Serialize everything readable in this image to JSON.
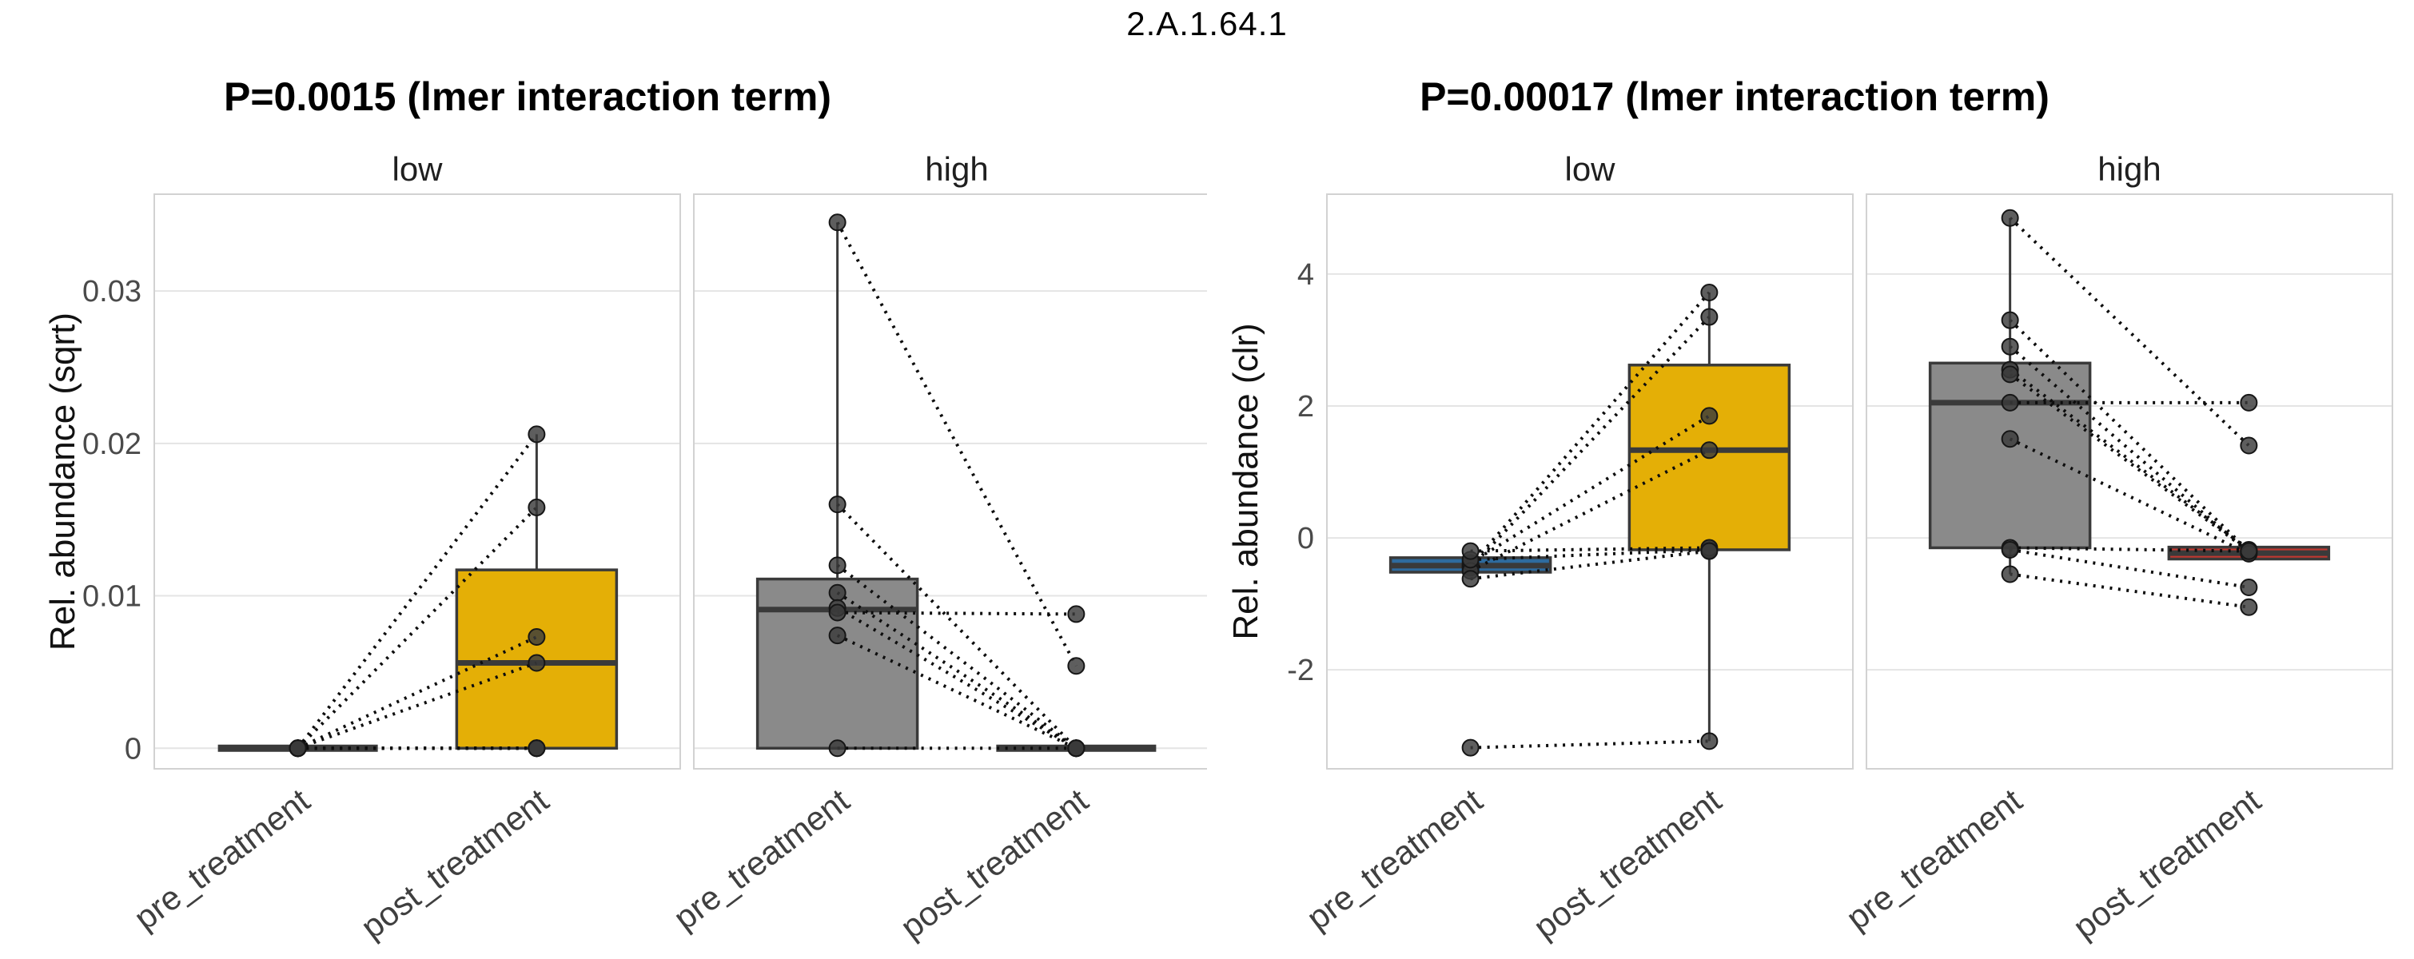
{
  "main_title": "2.A.1.64.1",
  "chart_data": [
    {
      "type": "paired-boxplot",
      "title": "P=0.0015 (lmer interaction term)",
      "ylabel": "Rel. abundance (sqrt)",
      "categories": [
        "pre_treatment",
        "post_treatment"
      ],
      "yticks": [
        {
          "v": 0,
          "label": "0"
        },
        {
          "v": 0.01,
          "label": "0.01"
        },
        {
          "v": 0.02,
          "label": "0.02"
        },
        {
          "v": 0.03,
          "label": "0.03"
        }
      ],
      "ylim": [
        -0.00135,
        0.03635
      ],
      "grid": true,
      "legend": "none",
      "facets": [
        {
          "label": "low",
          "groups": [
            {
              "category": "pre_treatment",
              "fill": "#8A8A8A",
              "collapsed": true,
              "q1": 0,
              "median": 0,
              "q3": 0,
              "whisker_low": 0,
              "whisker_high": 0
            },
            {
              "category": "post_treatment",
              "fill": "#E4AF06",
              "collapsed": false,
              "q1": 0,
              "median": 0.0056,
              "q3": 0.0117,
              "whisker_low": 0,
              "whisker_high": 0.0206
            }
          ],
          "pairs": [
            [
              0,
              0.0206
            ],
            [
              0,
              0.0158
            ],
            [
              0,
              0.0073
            ],
            [
              0,
              0.0056
            ],
            [
              0,
              0
            ],
            [
              0,
              0
            ],
            [
              0,
              0
            ],
            [
              0,
              0
            ]
          ]
        },
        {
          "label": "high",
          "groups": [
            {
              "category": "pre_treatment",
              "fill": "#8A8A8A",
              "collapsed": false,
              "q1": 0,
              "median": 0.0091,
              "q3": 0.0111,
              "whisker_low": 0,
              "whisker_high": 0.0345
            },
            {
              "category": "post_treatment",
              "fill": "#C03830",
              "collapsed": true,
              "q1": 0,
              "median": 0,
              "q3": 0,
              "whisker_low": 0,
              "whisker_high": 0
            }
          ],
          "pairs": [
            [
              0.0345,
              0.0054
            ],
            [
              0.016,
              0
            ],
            [
              0.012,
              0
            ],
            [
              0.0102,
              0
            ],
            [
              0.0092,
              0
            ],
            [
              0.0089,
              0.0088
            ],
            [
              0.0074,
              0
            ],
            [
              0,
              0
            ]
          ]
        }
      ]
    },
    {
      "type": "paired-boxplot",
      "title": "P=0.00017 (lmer interaction term)",
      "ylabel": "Rel. abundance (clr)",
      "categories": [
        "pre_treatment",
        "post_treatment"
      ],
      "yticks": [
        {
          "v": -2,
          "label": "-2"
        },
        {
          "v": 0,
          "label": "0"
        },
        {
          "v": 2,
          "label": "2"
        },
        {
          "v": 4,
          "label": "4"
        }
      ],
      "ylim": [
        -3.5,
        5.21
      ],
      "grid": true,
      "legend": "none",
      "facets": [
        {
          "label": "low",
          "groups": [
            {
              "category": "pre_treatment",
              "fill": "#2E6B9E",
              "collapsed": false,
              "q1": -0.52,
              "median": -0.42,
              "q3": -0.3,
              "whisker_low": -0.52,
              "whisker_high": -0.3
            },
            {
              "category": "post_treatment",
              "fill": "#E4AF06",
              "collapsed": false,
              "q1": -0.18,
              "median": 1.33,
              "q3": 2.62,
              "whisker_low": -3.08,
              "whisker_high": 3.72
            }
          ],
          "pairs": [
            [
              -0.42,
              3.72
            ],
            [
              -0.45,
              3.35
            ],
            [
              -0.38,
              1.85
            ],
            [
              -0.5,
              1.33
            ],
            [
              -0.33,
              -0.18
            ],
            [
              -0.2,
              -0.15
            ],
            [
              -0.62,
              -0.2
            ],
            [
              -3.18,
              -3.08
            ]
          ]
        },
        {
          "label": "high",
          "groups": [
            {
              "category": "pre_treatment",
              "fill": "#8A8A8A",
              "collapsed": false,
              "q1": -0.15,
              "median": 2.05,
              "q3": 2.65,
              "whisker_low": -0.55,
              "whisker_high": 4.85
            },
            {
              "category": "post_treatment",
              "fill": "#C03830",
              "collapsed": false,
              "q1": -0.32,
              "median": -0.23,
              "q3": -0.14,
              "whisker_low": -0.32,
              "whisker_high": -0.14
            }
          ],
          "pairs": [
            [
              4.85,
              1.4
            ],
            [
              3.3,
              -0.2
            ],
            [
              2.9,
              -0.22
            ],
            [
              2.55,
              -0.18
            ],
            [
              2.48,
              -0.2
            ],
            [
              2.05,
              2.05
            ],
            [
              1.5,
              -0.24
            ],
            [
              -0.15,
              -0.2
            ],
            [
              -0.18,
              -0.75
            ],
            [
              -0.55,
              -1.05
            ]
          ]
        }
      ]
    }
  ],
  "style": {
    "gold": "#E4AF06",
    "gray": "#8A8A8A",
    "blue": "#2E6B9E",
    "red": "#C03830",
    "box_stroke": "#3A3A3A",
    "point_fill": "#3A3A3A",
    "pair_line": "#0D0D0D",
    "gridline": "#E4E4E4",
    "panel_border": "#D2D2D2",
    "tick_text": "#4A4A4A",
    "facet_text": "#1F1F1F",
    "title_text": "#000000",
    "background": "#FFFFFF"
  }
}
